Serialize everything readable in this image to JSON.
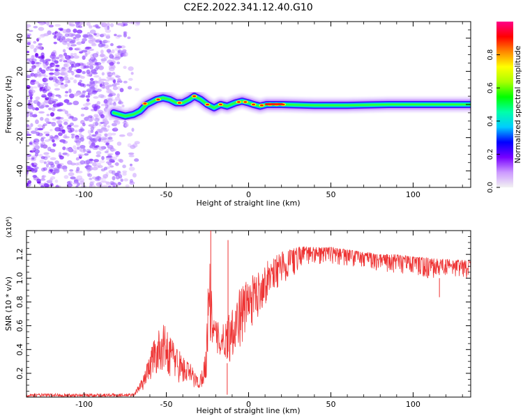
{
  "title": "C2E2.2022.341.12.40.G10",
  "chart_data": [
    {
      "type": "heatmap",
      "xlabel": "Height of straight line (km)",
      "ylabel": "Frequency (Hz)",
      "xlim": [
        -135,
        135
      ],
      "ylim": [
        -50,
        50
      ],
      "xticks": [
        -100,
        -50,
        0,
        50,
        100
      ],
      "yticks": [
        -40,
        -20,
        0,
        20,
        40
      ],
      "colorbar": {
        "label": "Normalized spectral amplitude",
        "range": [
          0,
          1
        ],
        "ticks": [
          "0.0",
          "0.2",
          "0.4",
          "0.6",
          "0.8"
        ],
        "ticks_values": [
          0.0,
          0.2,
          0.4,
          0.6,
          0.8
        ],
        "colors": [
          "#f2f2f2",
          "#cc99ff",
          "#7700ff",
          "#0000ff",
          "#00ccff",
          "#00ffaa",
          "#00ff00",
          "#aaff00",
          "#ffff00",
          "#ff8800",
          "#ff0000",
          "#ff0088"
        ]
      },
      "noise_region": {
        "x": [
          -135,
          -67
        ],
        "freq_range": [
          -50,
          50
        ]
      },
      "ridge": [
        {
          "x": -82,
          "f": -5
        },
        {
          "x": -75,
          "f": -7
        },
        {
          "x": -70,
          "f": -6
        },
        {
          "x": -66,
          "f": -4
        },
        {
          "x": -62,
          "f": 0
        },
        {
          "x": -56,
          "f": 3
        },
        {
          "x": -52,
          "f": 4
        },
        {
          "x": -48,
          "f": 3
        },
        {
          "x": -44,
          "f": 1
        },
        {
          "x": -40,
          "f": 1
        },
        {
          "x": -36,
          "f": 3
        },
        {
          "x": -33,
          "f": 5
        },
        {
          "x": -29,
          "f": 3
        },
        {
          "x": -25,
          "f": 0
        },
        {
          "x": -21,
          "f": -2
        },
        {
          "x": -17,
          "f": 0
        },
        {
          "x": -13,
          "f": -1
        },
        {
          "x": -8,
          "f": 1
        },
        {
          "x": -4,
          "f": 2
        },
        {
          "x": 0,
          "f": 1
        },
        {
          "x": 3,
          "f": 0
        },
        {
          "x": 7,
          "f": -1
        },
        {
          "x": 11,
          "f": 0
        },
        {
          "x": 20,
          "f": 0
        },
        {
          "x": 40,
          "f": -0.5
        },
        {
          "x": 60,
          "f": -0.5
        },
        {
          "x": 85,
          "f": 0
        },
        {
          "x": 110,
          "f": 0
        },
        {
          "x": 135,
          "f": 0
        }
      ]
    },
    {
      "type": "line",
      "xlabel": "Height of straight line (km)",
      "ylabel": "SNR (10 * v/v)",
      "y_multiplier": "(x10⁴)",
      "xlim": [
        -135,
        135
      ],
      "ylim": [
        0,
        1.4
      ],
      "xticks": [
        -100,
        -50,
        0,
        50,
        100
      ],
      "yticks": [
        0.2,
        0.4,
        0.6,
        0.8,
        1.0,
        1.2
      ],
      "color": "#ee3333",
      "envelope": {
        "x": [
          -135,
          -70,
          -64,
          -58,
          -52,
          -46,
          -40,
          -35,
          -30,
          -26,
          -24,
          -22,
          -20,
          -16,
          -12,
          -8,
          -4,
          0,
          5,
          10,
          15,
          20,
          25,
          30,
          35,
          40,
          45,
          50,
          60,
          70,
          80,
          90,
          100,
          110,
          120,
          135
        ],
        "low": [
          0.0,
          0.0,
          0.06,
          0.16,
          0.22,
          0.14,
          0.1,
          0.08,
          0.06,
          0.12,
          0.35,
          0.45,
          0.35,
          0.3,
          0.28,
          0.35,
          0.45,
          0.55,
          0.65,
          0.78,
          0.88,
          0.95,
          1.0,
          1.05,
          1.08,
          1.1,
          1.12,
          1.12,
          1.1,
          1.08,
          1.06,
          1.04,
          1.02,
          1.0,
          1.0,
          1.0
        ],
        "high": [
          0.03,
          0.03,
          0.18,
          0.48,
          0.62,
          0.5,
          0.35,
          0.28,
          0.15,
          0.4,
          1.4,
          0.7,
          0.65,
          0.6,
          0.72,
          0.85,
          0.95,
          1.0,
          1.05,
          1.12,
          1.2,
          1.22,
          1.24,
          1.26,
          1.27,
          1.26,
          1.26,
          1.26,
          1.24,
          1.22,
          1.2,
          1.2,
          1.18,
          1.17,
          1.16,
          1.15
        ]
      },
      "spikes": [
        {
          "x": -23,
          "y": 1.4
        },
        {
          "x": -12.5,
          "y": 1.32
        },
        {
          "x": -13,
          "y": 0.02
        },
        {
          "x": 116,
          "y": 0.84
        }
      ]
    }
  ]
}
